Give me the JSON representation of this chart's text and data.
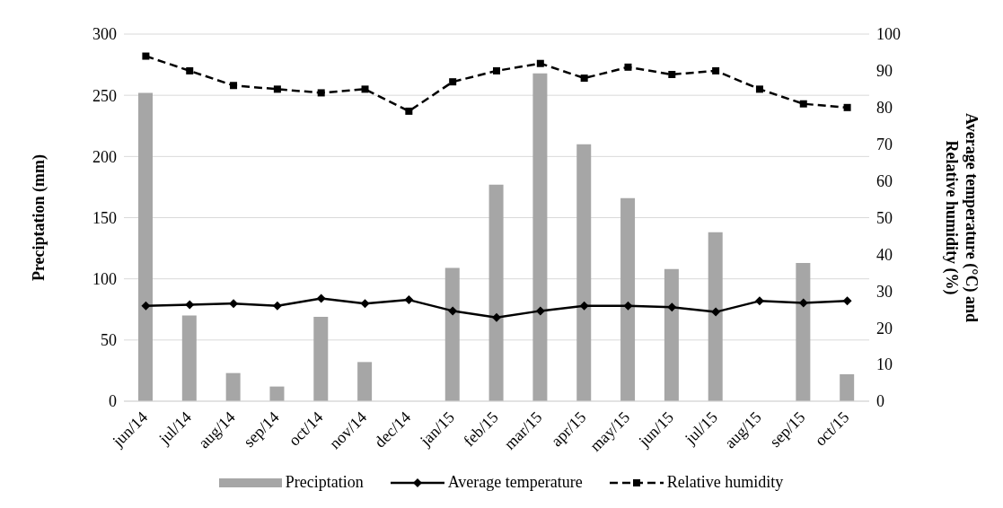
{
  "chart_data": {
    "type": "bar",
    "categories": [
      "jun/14",
      "jul/14",
      "aug/14",
      "sep/14",
      "oct/14",
      "nov/14",
      "dec/14",
      "jan/15",
      "feb/15",
      "mar/15",
      "apr/15",
      "may/15",
      "jun/15",
      "jul/15",
      "aug/15",
      "sep/15",
      "oct/15"
    ],
    "series": [
      {
        "name": "Preciptation",
        "color": "#a6a6a6",
        "values": [
          252,
          70,
          23,
          12,
          69,
          32,
          0,
          109,
          177,
          268,
          210,
          166,
          108,
          138,
          0,
          113,
          22
        ]
      },
      {
        "name": "Average temperature",
        "type": "line",
        "axis": "y2",
        "color": "#000000",
        "marker": "diamond",
        "line_style": "solid",
        "values": [
          26,
          26.3,
          26.6,
          26,
          28,
          26.6,
          27.6,
          24.6,
          22.8,
          24.6,
          26,
          26,
          25.6,
          24.3,
          27.3,
          26.8,
          27.3
        ]
      },
      {
        "name": "Relative humidity",
        "type": "line",
        "axis": "y2",
        "color": "#000000",
        "marker": "square",
        "line_style": "dashed",
        "values": [
          94,
          90,
          86,
          85,
          84,
          85,
          79,
          87,
          90,
          92,
          88,
          91,
          89,
          90,
          85,
          81,
          80
        ]
      }
    ],
    "ylabel": "Preciptation (mm)",
    "y2label": "Average temperature (°C) and Relative humidity (%)",
    "ylim": [
      0,
      300
    ],
    "yticks": [
      0,
      50,
      100,
      150,
      200,
      250,
      300
    ],
    "y2lim": [
      0,
      100
    ],
    "y2ticks": [
      0,
      10,
      20,
      30,
      40,
      50,
      60,
      70,
      80,
      90,
      100
    ],
    "grid": "y",
    "legend": "bottom"
  }
}
